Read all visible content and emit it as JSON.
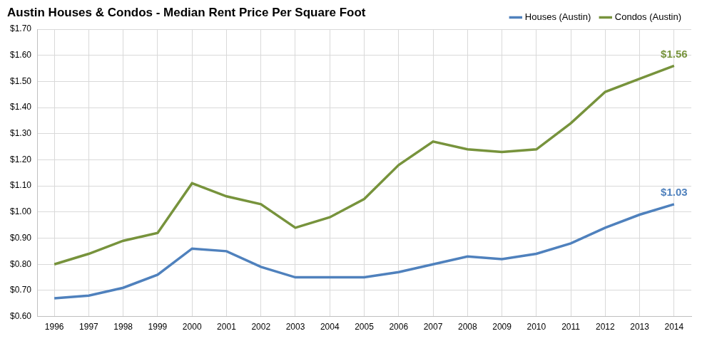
{
  "chart_data": {
    "type": "line",
    "title": "Austin Houses & Condos - Median Rent Price Per Square Foot",
    "categories": [
      "1996",
      "1997",
      "1998",
      "1999",
      "2000",
      "2001",
      "2002",
      "2003",
      "2004",
      "2005",
      "2006",
      "2007",
      "2008",
      "2009",
      "2010",
      "2011",
      "2012",
      "2013",
      "2014"
    ],
    "series": [
      {
        "name": "Houses (Austin)",
        "color": "#4f81bd",
        "values": [
          0.67,
          0.68,
          0.71,
          0.76,
          0.86,
          0.85,
          0.79,
          0.75,
          0.75,
          0.75,
          0.77,
          0.8,
          0.83,
          0.82,
          0.84,
          0.88,
          0.94,
          0.99,
          1.03
        ]
      },
      {
        "name": "Condos (Austin)",
        "color": "#77933c",
        "values": [
          0.8,
          0.84,
          0.89,
          0.92,
          1.11,
          1.06,
          1.03,
          0.94,
          0.98,
          1.05,
          1.18,
          1.27,
          1.24,
          1.23,
          1.24,
          1.34,
          1.46,
          1.51,
          1.56
        ]
      }
    ],
    "ylim": [
      0.6,
      1.7
    ],
    "yticks": [
      {
        "value": 0.6,
        "label": "$0.60"
      },
      {
        "value": 0.7,
        "label": "$0.70"
      },
      {
        "value": 0.8,
        "label": "$0.80"
      },
      {
        "value": 0.9,
        "label": "$0.90"
      },
      {
        "value": 1.0,
        "label": "$1.00"
      },
      {
        "value": 1.1,
        "label": "$1.10"
      },
      {
        "value": 1.2,
        "label": "$1.20"
      },
      {
        "value": 1.3,
        "label": "$1.30"
      },
      {
        "value": 1.4,
        "label": "$1.40"
      },
      {
        "value": 1.5,
        "label": "$1.50"
      },
      {
        "value": 1.6,
        "label": "$1.60"
      },
      {
        "value": 1.7,
        "label": "$1.70"
      }
    ],
    "grid": true,
    "legend": "top-right",
    "annotations": [
      {
        "text": "$1.56",
        "x": "2014",
        "y": 1.56,
        "color": "#77933c"
      },
      {
        "text": "$1.03",
        "x": "2014",
        "y": 1.03,
        "color": "#4f81bd"
      }
    ]
  }
}
